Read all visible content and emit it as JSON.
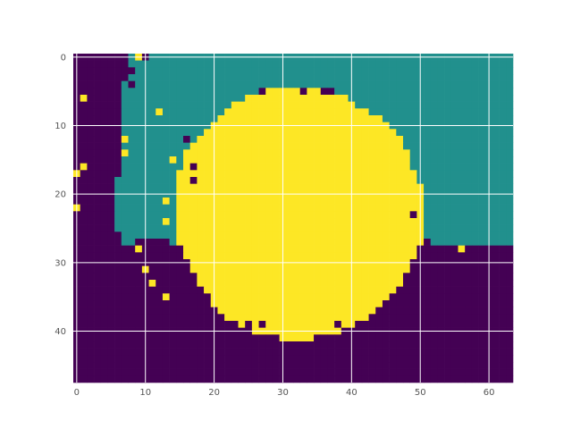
{
  "chart_data": {
    "type": "heatmap",
    "title": "",
    "xlabel": "",
    "ylabel": "",
    "shape": [
      48,
      64
    ],
    "xlim": [
      -0.5,
      63.5
    ],
    "ylim": [
      47.5,
      -0.5
    ],
    "y_inverted": true,
    "grid": true,
    "xticks": [
      0,
      10,
      20,
      30,
      40,
      50,
      60
    ],
    "yticks": [
      0,
      10,
      20,
      30,
      40
    ],
    "xtick_labels": [
      "0",
      "10",
      "20",
      "30",
      "40",
      "50",
      "60"
    ],
    "ytick_labels": [
      "0",
      "10",
      "20",
      "30",
      "40"
    ],
    "colormap": "viridis",
    "class_values": [
      0,
      1,
      2
    ],
    "class_colors": [
      "#440154",
      "#21908d",
      "#fde725"
    ],
    "regions": {
      "teal_background_top": {
        "value": 1,
        "rows": [
          0,
          27
        ]
      },
      "left_teal_boundary_by_row": [
        [
          0,
          8
        ],
        [
          1,
          8
        ],
        [
          2,
          8
        ],
        [
          3,
          8
        ],
        [
          4,
          7
        ],
        [
          5,
          7
        ],
        [
          6,
          7
        ],
        [
          7,
          7
        ],
        [
          8,
          7
        ],
        [
          9,
          7
        ],
        [
          10,
          7
        ],
        [
          11,
          7
        ],
        [
          12,
          7
        ],
        [
          13,
          7
        ],
        [
          14,
          7
        ],
        [
          15,
          7
        ],
        [
          16,
          7
        ],
        [
          17,
          7
        ],
        [
          18,
          6
        ],
        [
          19,
          6
        ],
        [
          20,
          6
        ],
        [
          21,
          6
        ],
        [
          22,
          6
        ],
        [
          23,
          6
        ],
        [
          24,
          6
        ],
        [
          25,
          6
        ],
        [
          26,
          7
        ],
        [
          27,
          7
        ]
      ],
      "teal_bottom_edge_by_col": [
        [
          6,
          26
        ],
        [
          7,
          27
        ],
        [
          8,
          27
        ],
        [
          9,
          26
        ],
        [
          10,
          26
        ],
        [
          11,
          26
        ],
        [
          12,
          26
        ],
        [
          13,
          26
        ],
        [
          50,
          26
        ],
        [
          51,
          26
        ],
        [
          52,
          27
        ],
        [
          53,
          27
        ],
        [
          54,
          27
        ],
        [
          55,
          27
        ],
        [
          56,
          27
        ],
        [
          57,
          27
        ],
        [
          58,
          27
        ],
        [
          59,
          27
        ],
        [
          60,
          27
        ],
        [
          61,
          27
        ],
        [
          62,
          27
        ],
        [
          63,
          27
        ]
      ],
      "yellow_disk": {
        "value": 2,
        "rows": [
          [
            5,
            28,
            35
          ],
          [
            6,
            25,
            39
          ],
          [
            7,
            23,
            40
          ],
          [
            8,
            22,
            42
          ],
          [
            9,
            21,
            44
          ],
          [
            10,
            20,
            45
          ],
          [
            11,
            19,
            46
          ],
          [
            12,
            18,
            47
          ],
          [
            13,
            17,
            47
          ],
          [
            14,
            16,
            48
          ],
          [
            15,
            16,
            48
          ],
          [
            16,
            16,
            48
          ],
          [
            17,
            15,
            49
          ],
          [
            18,
            15,
            49
          ],
          [
            19,
            15,
            50
          ],
          [
            20,
            15,
            50
          ],
          [
            21,
            15,
            50
          ],
          [
            22,
            15,
            50
          ],
          [
            23,
            15,
            50
          ],
          [
            24,
            15,
            50
          ],
          [
            25,
            15,
            50
          ],
          [
            26,
            15,
            50
          ],
          [
            27,
            15,
            50
          ],
          [
            28,
            16,
            49
          ],
          [
            29,
            16,
            49
          ],
          [
            30,
            17,
            48
          ],
          [
            31,
            17,
            48
          ],
          [
            32,
            18,
            47
          ],
          [
            33,
            18,
            47
          ],
          [
            34,
            19,
            46
          ],
          [
            35,
            20,
            45
          ],
          [
            36,
            20,
            44
          ],
          [
            37,
            21,
            43
          ],
          [
            38,
            22,
            42
          ],
          [
            39,
            24,
            40
          ],
          [
            40,
            26,
            38
          ],
          [
            41,
            30,
            34
          ]
        ]
      },
      "purple_holes_in_yellow": [
        [
          5,
          27
        ],
        [
          5,
          33
        ],
        [
          5,
          36
        ],
        [
          5,
          37
        ],
        [
          39,
          25
        ],
        [
          39,
          27
        ],
        [
          39,
          38
        ],
        [
          40,
          40
        ]
      ],
      "scattered_yellow_pixels": [
        [
          0,
          9
        ],
        [
          6,
          1
        ],
        [
          8,
          12
        ],
        [
          12,
          7
        ],
        [
          14,
          7
        ],
        [
          15,
          14
        ],
        [
          16,
          1
        ],
        [
          17,
          0
        ],
        [
          21,
          13
        ],
        [
          22,
          0
        ],
        [
          24,
          13
        ],
        [
          28,
          9
        ],
        [
          31,
          10
        ],
        [
          33,
          11
        ],
        [
          35,
          13
        ],
        [
          23,
          50
        ],
        [
          28,
          56
        ]
      ],
      "scattered_purple_pixels": [
        [
          0,
          10
        ],
        [
          2,
          8
        ],
        [
          4,
          8
        ],
        [
          23,
          49
        ],
        [
          16,
          17
        ],
        [
          18,
          17
        ],
        [
          12,
          16
        ]
      ]
    }
  }
}
